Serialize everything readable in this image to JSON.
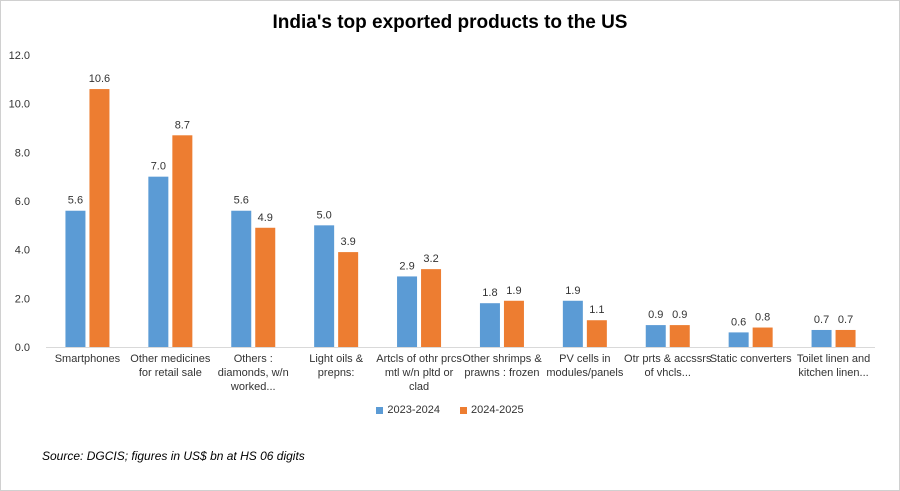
{
  "chart_data": {
    "type": "bar",
    "title": "India's top exported products to the US",
    "categories": [
      [
        "Smartphones"
      ],
      [
        "Other medicines",
        "for retail sale"
      ],
      [
        "Others :",
        "diamonds, w/n",
        "worked..."
      ],
      [
        "Light oils &",
        "prepns:"
      ],
      [
        "Artcls of othr prcs",
        "mtl w/n pltd or",
        "clad"
      ],
      [
        "Other shrimps &",
        "prawns : frozen"
      ],
      [
        "PV cells in",
        "modules/panels"
      ],
      [
        "Otr prts & accssrs",
        "of vhcls..."
      ],
      [
        "Static converters"
      ],
      [
        "Toilet linen and",
        "kitchen linen..."
      ]
    ],
    "series": [
      {
        "name": "2023-2024",
        "color": "#5b9bd5",
        "values": [
          5.6,
          7.0,
          5.6,
          5.0,
          2.9,
          1.8,
          1.9,
          0.9,
          0.6,
          0.7
        ]
      },
      {
        "name": "2024-2025",
        "color": "#ed7d31",
        "values": [
          10.6,
          8.7,
          4.9,
          3.9,
          3.2,
          1.9,
          1.1,
          0.9,
          0.8,
          0.7
        ]
      }
    ],
    "ylim": [
      0,
      12
    ],
    "yticks": [
      "0.0",
      "2.0",
      "4.0",
      "6.0",
      "8.0",
      "10.0",
      "12.0"
    ],
    "grid": false,
    "legend": "bottom",
    "xlabel": "",
    "ylabel": ""
  },
  "source": "Source: DGCIS; figures in US$ bn at HS 06 digits"
}
